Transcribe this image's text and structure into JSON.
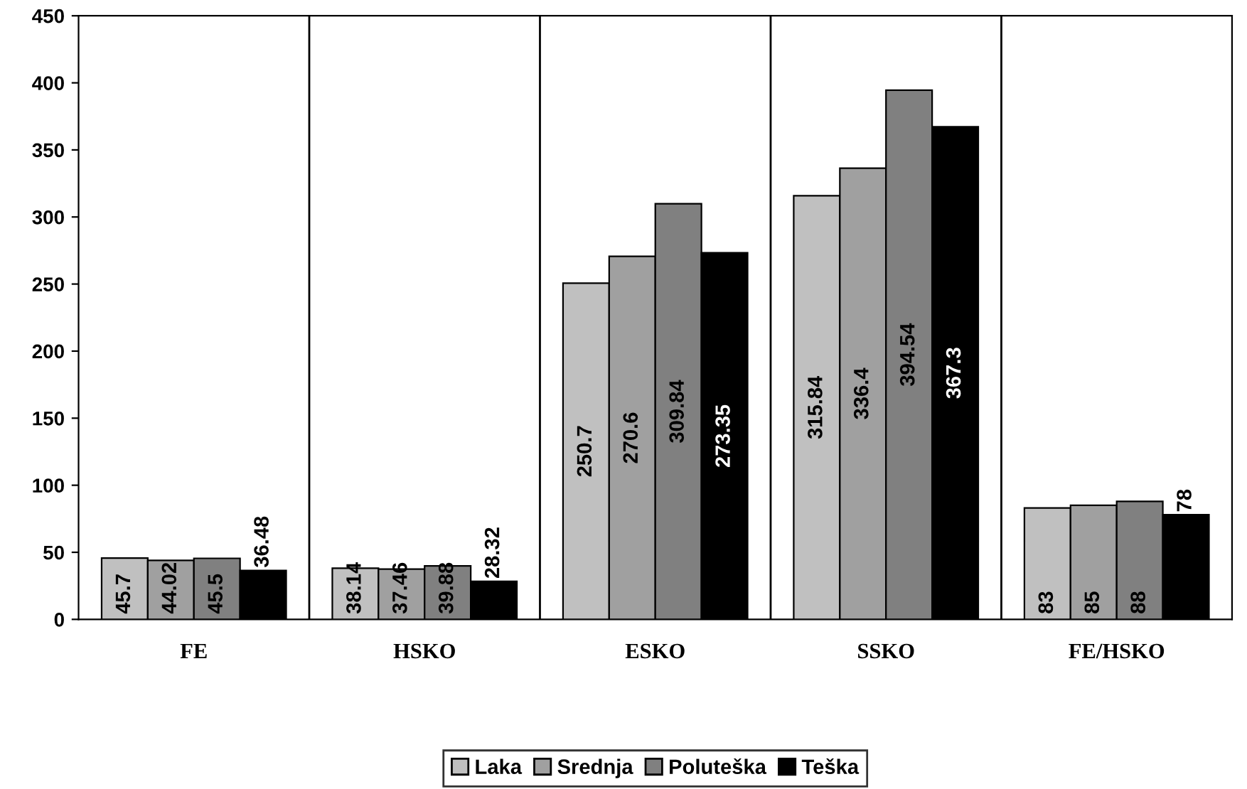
{
  "chart_data": {
    "type": "bar",
    "categories": [
      "FE",
      "HSKO",
      "ESKO",
      "SSKO",
      "FE/HSKO"
    ],
    "series": [
      {
        "name": "Laka",
        "color": "#c0c0c0",
        "values": [
          45.7,
          38.14,
          250.7,
          315.84,
          83
        ]
      },
      {
        "name": "Srednja",
        "color": "#a0a0a0",
        "values": [
          44.02,
          37.46,
          270.6,
          336.4,
          85
        ]
      },
      {
        "name": "Poluteška",
        "color": "#808080",
        "values": [
          45.5,
          39.88,
          309.84,
          394.54,
          88
        ]
      },
      {
        "name": "Teška",
        "color": "#000000",
        "values": [
          36.48,
          28.32,
          273.35,
          367.3,
          78
        ]
      }
    ],
    "ylim": [
      0,
      450
    ],
    "yticks": [
      0,
      50,
      100,
      150,
      200,
      250,
      300,
      350,
      400,
      450
    ],
    "grid": "x",
    "legend": "bottom",
    "data_labels": true
  }
}
